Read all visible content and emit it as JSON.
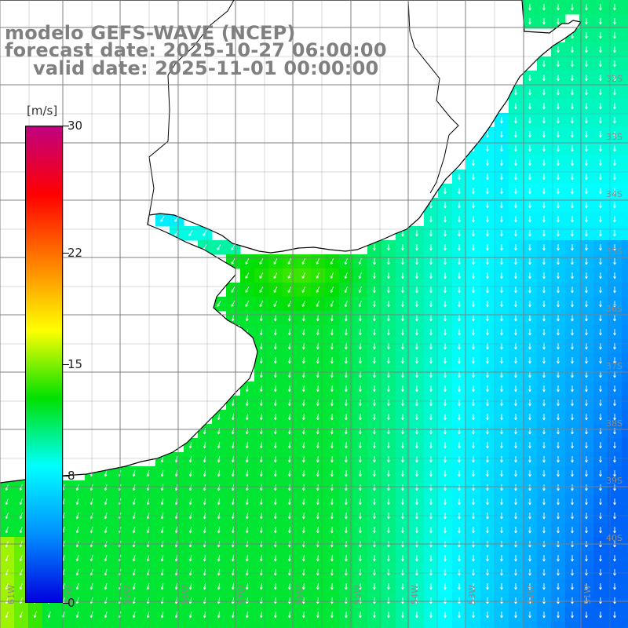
{
  "title": {
    "line1": "modelo GEFS-WAVE (NCEP)",
    "line2": "forecast date: 2025-10-27 06:00:00",
    "line3": "valid date: 2025-11-01 00:00:00"
  },
  "variable": "wind speed and direction",
  "colorbar": {
    "unit": "[m/s]",
    "min": 0,
    "max": 30,
    "ticks": [
      "30",
      "22",
      "15",
      "8",
      "0"
    ],
    "tick_values": [
      30,
      22,
      15,
      8,
      0
    ],
    "colors": [
      "#0000e0",
      "#0090ff",
      "#00ffff",
      "#00e000",
      "#ffff00",
      "#ff8000",
      "#ff0000",
      "#c00080"
    ]
  },
  "map": {
    "lat_labels": [
      "32S",
      "33S",
      "34S",
      "35S",
      "36S",
      "37S",
      "38S",
      "39S",
      "40S"
    ],
    "lon_labels": [
      "61W",
      "60W",
      "59W",
      "58W",
      "57W",
      "56W",
      "55W",
      "54W",
      "53W",
      "52W",
      "51W"
    ],
    "land_color": "#ffffff",
    "grid_color": "#808080",
    "arrow_color": "#ffffff"
  }
}
